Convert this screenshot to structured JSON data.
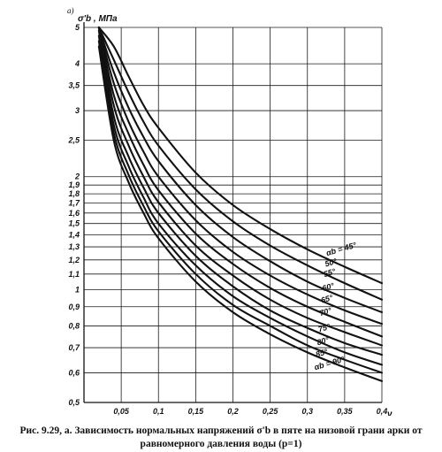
{
  "caption": {
    "line1": "Рис. 9.29, а. Зависимость нормальных напряжений σ'b в пяте на низовой грани арки от",
    "line2": "равномерного давления воды (p=1)"
  },
  "chart_data": {
    "type": "line",
    "panel_label": "а)",
    "ylabel": "σ'b , МПа",
    "xlabel": "ν",
    "y_scale": "log",
    "xlim": [
      0.0,
      0.4
    ],
    "ylim": [
      0.5,
      5
    ],
    "grid": true,
    "x_ticks": [
      0.05,
      0.1,
      0.15,
      0.2,
      0.25,
      0.3,
      0.35,
      0.4
    ],
    "x_tick_labels": [
      "0,05",
      "0,1",
      "0,15",
      "0,2",
      "0,25",
      "0,3",
      "0,35",
      "0,4"
    ],
    "y_ticks": [
      0.5,
      0.6,
      0.7,
      0.8,
      0.9,
      1.0,
      1.1,
      1.2,
      1.3,
      1.4,
      1.5,
      1.6,
      1.7,
      1.8,
      1.9,
      2.0,
      2.5,
      3.0,
      3.5,
      4.0,
      5.0
    ],
    "y_tick_labels": [
      "0,5",
      "0,6",
      "0,7",
      "0,8",
      "0,9",
      "1",
      "1,1",
      "1,2",
      "1,3",
      "1,4",
      "1,5",
      "1,6",
      "1,7",
      "1,8",
      "1,9",
      "2",
      "2,5",
      "3",
      "3,5",
      "4",
      "5"
    ],
    "series": [
      {
        "name": "αb = 45°",
        "label_y": 1.23,
        "x": [
          0.02,
          0.04,
          0.06,
          0.08,
          0.1,
          0.15,
          0.2,
          0.25,
          0.3,
          0.35,
          0.4
        ],
        "values": [
          5.0,
          4.45,
          3.7,
          3.1,
          2.7,
          2.05,
          1.68,
          1.45,
          1.28,
          1.15,
          1.04
        ]
      },
      {
        "name": "50°",
        "label_y": 1.15,
        "x": [
          0.02,
          0.04,
          0.06,
          0.08,
          0.1,
          0.15,
          0.2,
          0.25,
          0.3,
          0.35,
          0.4
        ],
        "values": [
          5.0,
          4.1,
          3.35,
          2.8,
          2.42,
          1.85,
          1.52,
          1.31,
          1.16,
          1.04,
          0.94
        ]
      },
      {
        "name": "55°",
        "label_y": 1.08,
        "x": [
          0.02,
          0.04,
          0.06,
          0.08,
          0.1,
          0.15,
          0.2,
          0.25,
          0.3,
          0.35,
          0.4
        ],
        "values": [
          5.0,
          3.8,
          3.05,
          2.55,
          2.2,
          1.68,
          1.38,
          1.19,
          1.05,
          0.95,
          0.87
        ]
      },
      {
        "name": "60°",
        "label_y": 0.99,
        "x": [
          0.02,
          0.04,
          0.06,
          0.08,
          0.1,
          0.15,
          0.2,
          0.25,
          0.3,
          0.35,
          0.4
        ],
        "values": [
          5.0,
          3.55,
          2.8,
          2.33,
          2.0,
          1.53,
          1.26,
          1.09,
          0.97,
          0.88,
          0.81
        ]
      },
      {
        "name": "65°",
        "label_y": 0.92,
        "x": [
          0.02,
          0.04,
          0.06,
          0.08,
          0.1,
          0.15,
          0.2,
          0.25,
          0.3,
          0.35,
          0.4
        ],
        "values": [
          5.0,
          3.3,
          2.6,
          2.15,
          1.84,
          1.41,
          1.17,
          1.01,
          0.9,
          0.82,
          0.75
        ]
      },
      {
        "name": "70°",
        "label_y": 0.85,
        "x": [
          0.02,
          0.04,
          0.06,
          0.08,
          0.1,
          0.15,
          0.2,
          0.25,
          0.3,
          0.35,
          0.4
        ],
        "values": [
          5.0,
          3.1,
          2.42,
          2.0,
          1.71,
          1.31,
          1.09,
          0.94,
          0.84,
          0.77,
          0.71
        ]
      },
      {
        "name": "75°",
        "label_y": 0.77,
        "x": [
          0.02,
          0.04,
          0.06,
          0.08,
          0.1,
          0.15,
          0.2,
          0.25,
          0.3,
          0.35,
          0.4
        ],
        "values": [
          4.9,
          2.9,
          2.26,
          1.87,
          1.6,
          1.23,
          1.02,
          0.88,
          0.79,
          0.72,
          0.67
        ]
      },
      {
        "name": "80°",
        "label_y": 0.71,
        "x": [
          0.02,
          0.04,
          0.06,
          0.08,
          0.1,
          0.15,
          0.2,
          0.25,
          0.3,
          0.35,
          0.4
        ],
        "values": [
          4.75,
          2.75,
          2.13,
          1.76,
          1.5,
          1.16,
          0.96,
          0.84,
          0.75,
          0.68,
          0.63
        ]
      },
      {
        "name": "85°",
        "label_y": 0.66,
        "x": [
          0.02,
          0.04,
          0.06,
          0.08,
          0.1,
          0.15,
          0.2,
          0.25,
          0.3,
          0.35,
          0.4
        ],
        "values": [
          4.6,
          2.62,
          2.02,
          1.67,
          1.43,
          1.1,
          0.91,
          0.8,
          0.71,
          0.65,
          0.6
        ]
      },
      {
        "name": "αb = 90°",
        "label_y": 0.61,
        "x": [
          0.02,
          0.04,
          0.06,
          0.08,
          0.1,
          0.15,
          0.2,
          0.25,
          0.3,
          0.35,
          0.4
        ],
        "values": [
          4.45,
          2.5,
          1.93,
          1.6,
          1.37,
          1.05,
          0.87,
          0.76,
          0.68,
          0.62,
          0.57
        ]
      }
    ]
  }
}
